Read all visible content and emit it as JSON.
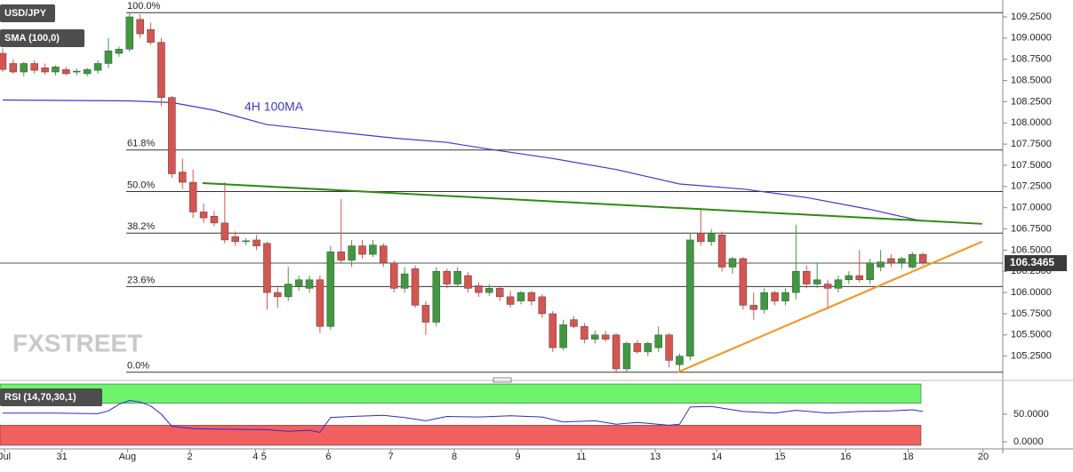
{
  "chart_data": {
    "type": "candlestick",
    "symbol": "USD/JPY",
    "indicator": "SMA (100,0)",
    "watermark": "FXSTREET",
    "xlim": [
      -0.25,
      94.55
    ],
    "ylim": [
      104.995,
      109.449
    ],
    "up_color": "#3d9b3d",
    "down_color": "#d9534f",
    "ohlc": [
      [
        108.82,
        108.88,
        108.6,
        108.63
      ],
      [
        108.7,
        108.75,
        108.58,
        108.6
      ],
      [
        108.6,
        108.72,
        108.55,
        108.7
      ],
      [
        108.7,
        108.74,
        108.58,
        108.62
      ],
      [
        108.65,
        108.7,
        108.57,
        108.6
      ],
      [
        108.6,
        108.68,
        108.56,
        108.66
      ],
      [
        108.63,
        108.66,
        108.56,
        108.58
      ],
      [
        108.6,
        108.64,
        108.56,
        108.61
      ],
      [
        108.58,
        108.65,
        108.55,
        108.63
      ],
      [
        108.62,
        108.74,
        108.58,
        108.7
      ],
      [
        108.7,
        109.0,
        108.65,
        108.85
      ],
      [
        108.82,
        108.9,
        108.78,
        108.87
      ],
      [
        108.87,
        109.3,
        108.84,
        109.25
      ],
      [
        109.22,
        109.28,
        109.0,
        109.05
      ],
      [
        109.1,
        109.18,
        108.92,
        108.95
      ],
      [
        108.95,
        109.0,
        108.2,
        108.3
      ],
      [
        108.3,
        108.32,
        107.35,
        107.4
      ],
      [
        107.42,
        107.58,
        107.22,
        107.3
      ],
      [
        107.3,
        107.45,
        106.88,
        106.95
      ],
      [
        106.95,
        107.05,
        106.82,
        106.88
      ],
      [
        106.9,
        106.96,
        106.78,
        106.82
      ],
      [
        106.82,
        107.3,
        106.58,
        106.62
      ],
      [
        106.66,
        106.72,
        106.55,
        106.6
      ],
      [
        106.6,
        106.64,
        106.56,
        106.61
      ],
      [
        106.62,
        106.68,
        106.5,
        106.55
      ],
      [
        106.58,
        106.6,
        105.8,
        106.0
      ],
      [
        106.0,
        106.06,
        105.82,
        105.95
      ],
      [
        105.95,
        106.3,
        105.9,
        106.1
      ],
      [
        106.08,
        106.2,
        106.02,
        106.15
      ],
      [
        106.05,
        106.2,
        106.0,
        106.15
      ],
      [
        106.15,
        106.2,
        105.52,
        105.6
      ],
      [
        105.6,
        106.55,
        105.56,
        106.48
      ],
      [
        106.48,
        107.1,
        106.35,
        106.38
      ],
      [
        106.38,
        106.62,
        106.3,
        106.55
      ],
      [
        106.55,
        106.62,
        106.4,
        106.45
      ],
      [
        106.45,
        106.62,
        106.42,
        106.56
      ],
      [
        106.55,
        106.58,
        106.3,
        106.35
      ],
      [
        106.35,
        106.38,
        106.0,
        106.05
      ],
      [
        106.05,
        106.3,
        106.0,
        106.22
      ],
      [
        106.28,
        106.32,
        105.82,
        105.85
      ],
      [
        105.85,
        105.9,
        105.5,
        105.65
      ],
      [
        105.65,
        106.3,
        105.6,
        106.25
      ],
      [
        106.25,
        106.28,
        106.05,
        106.1
      ],
      [
        106.1,
        106.3,
        106.08,
        106.25
      ],
      [
        106.2,
        106.24,
        106.0,
        106.05
      ],
      [
        106.08,
        106.12,
        105.95,
        106.0
      ],
      [
        106.0,
        106.1,
        105.96,
        106.05
      ],
      [
        106.05,
        106.08,
        105.9,
        105.95
      ],
      [
        105.95,
        106.02,
        105.82,
        105.86
      ],
      [
        105.9,
        106.02,
        105.86,
        106.0
      ],
      [
        106.0,
        106.02,
        105.85,
        105.9
      ],
      [
        105.95,
        105.98,
        105.7,
        105.75
      ],
      [
        105.75,
        105.78,
        105.3,
        105.35
      ],
      [
        105.35,
        105.68,
        105.32,
        105.62
      ],
      [
        105.68,
        105.72,
        105.58,
        105.6
      ],
      [
        105.6,
        105.64,
        105.4,
        105.45
      ],
      [
        105.45,
        105.55,
        105.4,
        105.5
      ],
      [
        105.5,
        105.55,
        105.42,
        105.45
      ],
      [
        105.5,
        105.52,
        105.05,
        105.1
      ],
      [
        105.1,
        105.42,
        105.06,
        105.4
      ],
      [
        105.4,
        105.44,
        105.28,
        105.3
      ],
      [
        105.3,
        105.42,
        105.25,
        105.4
      ],
      [
        105.35,
        105.6,
        105.3,
        105.5
      ],
      [
        105.5,
        105.52,
        105.12,
        105.2
      ],
      [
        105.15,
        105.28,
        105.08,
        105.25
      ],
      [
        105.25,
        106.7,
        105.2,
        106.62
      ],
      [
        106.7,
        107.0,
        106.55,
        106.6
      ],
      [
        106.6,
        106.75,
        106.55,
        106.7
      ],
      [
        106.68,
        106.72,
        106.25,
        106.3
      ],
      [
        106.3,
        106.42,
        106.22,
        106.4
      ],
      [
        106.4,
        106.42,
        105.8,
        105.85
      ],
      [
        105.85,
        106.0,
        105.68,
        105.8
      ],
      [
        105.8,
        106.05,
        105.75,
        106.0
      ],
      [
        106.0,
        106.02,
        105.85,
        105.9
      ],
      [
        105.9,
        106.05,
        105.85,
        106.0
      ],
      [
        106.0,
        106.8,
        105.92,
        106.25
      ],
      [
        106.25,
        106.32,
        106.05,
        106.1
      ],
      [
        106.1,
        106.35,
        106.05,
        106.15
      ],
      [
        106.1,
        106.15,
        105.8,
        106.05
      ],
      [
        106.05,
        106.2,
        106.0,
        106.15
      ],
      [
        106.15,
        106.25,
        106.1,
        106.2
      ],
      [
        106.2,
        106.5,
        106.12,
        106.15
      ],
      [
        106.15,
        106.4,
        106.1,
        106.35
      ],
      [
        106.3,
        106.5,
        106.25,
        106.36
      ],
      [
        106.4,
        106.45,
        106.3,
        106.35
      ],
      [
        106.35,
        106.42,
        106.28,
        106.4
      ],
      [
        106.3,
        106.48,
        106.28,
        106.45
      ],
      [
        106.45,
        106.47,
        106.32,
        106.35
      ]
    ],
    "sma": {
      "name": "4H 100MA",
      "color": "#3a3ad6",
      "x": [
        0,
        12,
        16,
        20,
        25,
        31,
        37,
        42,
        46,
        52,
        58,
        64,
        70,
        76,
        82,
        87
      ],
      "values": [
        108.27,
        108.26,
        108.24,
        108.15,
        107.98,
        107.9,
        107.82,
        107.77,
        107.69,
        107.58,
        107.45,
        107.28,
        107.22,
        107.12,
        106.98,
        106.84
      ]
    },
    "trend_lines": [
      {
        "color": "#2e8b12",
        "x": [
          18.9,
          92.6
        ],
        "values": [
          107.29,
          106.81
        ]
      },
      {
        "color": "#f7931e",
        "x": [
          63.8,
          92.6
        ],
        "values": [
          105.06,
          106.6
        ]
      }
    ],
    "fib_levels": [
      {
        "label": "100.0%",
        "value": 109.3
      },
      {
        "label": "61.8%",
        "value": 107.68
      },
      {
        "label": "50.0%",
        "value": 107.19
      },
      {
        "label": "38.2%",
        "value": 106.7
      },
      {
        "label": "23.6%",
        "value": 106.07
      },
      {
        "label": "0.0%",
        "value": 105.06
      }
    ],
    "last_price": 106.3465,
    "yticks": [
      {
        "value": 105.25,
        "label": "105.2500"
      },
      {
        "value": 105.5,
        "label": "105.5000"
      },
      {
        "value": 105.75,
        "label": "105.7500"
      },
      {
        "value": 106.0,
        "label": "106.0000"
      },
      {
        "value": 106.25,
        "label": "106.2500"
      },
      {
        "value": 106.5,
        "label": "106.5000"
      },
      {
        "value": 106.75,
        "label": "106.7500"
      },
      {
        "value": 107.0,
        "label": "107.0000"
      },
      {
        "value": 107.25,
        "label": "107.2500"
      },
      {
        "value": 107.5,
        "label": "107.5000"
      },
      {
        "value": 107.75,
        "label": "107.7500"
      },
      {
        "value": 108.0,
        "label": "108.0000"
      },
      {
        "value": 108.25,
        "label": "108.2500"
      },
      {
        "value": 108.5,
        "label": "108.5000"
      },
      {
        "value": 108.75,
        "label": "108.7500"
      },
      {
        "value": 109.0,
        "label": "109.0000"
      },
      {
        "value": 109.25,
        "label": "109.2500"
      }
    ],
    "xticks": [
      {
        "value": 0.17,
        "label": "Jul"
      },
      {
        "value": 5.6,
        "label": "31"
      },
      {
        "value": 11.8,
        "label": "Aug"
      },
      {
        "value": 17.7,
        "label": "2"
      },
      {
        "value": 23.9,
        "label": "4"
      },
      {
        "value": 24.7,
        "label": "5"
      },
      {
        "value": 30.8,
        "label": "6"
      },
      {
        "value": 36.7,
        "label": "7"
      },
      {
        "value": 42.7,
        "label": "8"
      },
      {
        "value": 48.7,
        "label": "9"
      },
      {
        "value": 54.7,
        "label": "11"
      },
      {
        "value": 61.7,
        "label": "13"
      },
      {
        "value": 67.5,
        "label": "14"
      },
      {
        "value": 73.5,
        "label": "15"
      },
      {
        "value": 79.7,
        "label": "16"
      },
      {
        "value": 85.6,
        "label": "18"
      },
      {
        "value": 92.7,
        "label": "20"
      }
    ],
    "rsi": {
      "name": "RSI (14,70,30,1)",
      "color": "#2b2bd0",
      "upper_band": 70,
      "lower_band": 30,
      "upper_color": "#6cf56c",
      "lower_color": "#f25f5f",
      "ylim": [
        -12.9,
        104.8
      ],
      "yticks": [
        {
          "value": 50,
          "label": "50.0000"
        },
        {
          "value": 0,
          "label": "0.0000"
        }
      ],
      "x": [
        0,
        5,
        9,
        10,
        11,
        12,
        13,
        14,
        15,
        16,
        17,
        18,
        20,
        25,
        27,
        29,
        30,
        31,
        33,
        36,
        38,
        40,
        42,
        45,
        48,
        51,
        53,
        56,
        58,
        60,
        63,
        64,
        65,
        67,
        70,
        73,
        75,
        78,
        81,
        84,
        86,
        87
      ],
      "values": [
        52,
        52,
        51,
        56,
        68,
        75,
        72,
        65,
        50,
        28,
        26,
        24,
        23,
        22,
        19,
        21,
        17,
        44,
        46,
        48,
        44,
        38,
        46,
        45,
        47,
        45,
        36,
        38,
        32,
        35,
        30,
        32,
        63,
        64,
        55,
        52,
        57,
        52,
        55,
        56,
        58,
        55
      ]
    }
  }
}
